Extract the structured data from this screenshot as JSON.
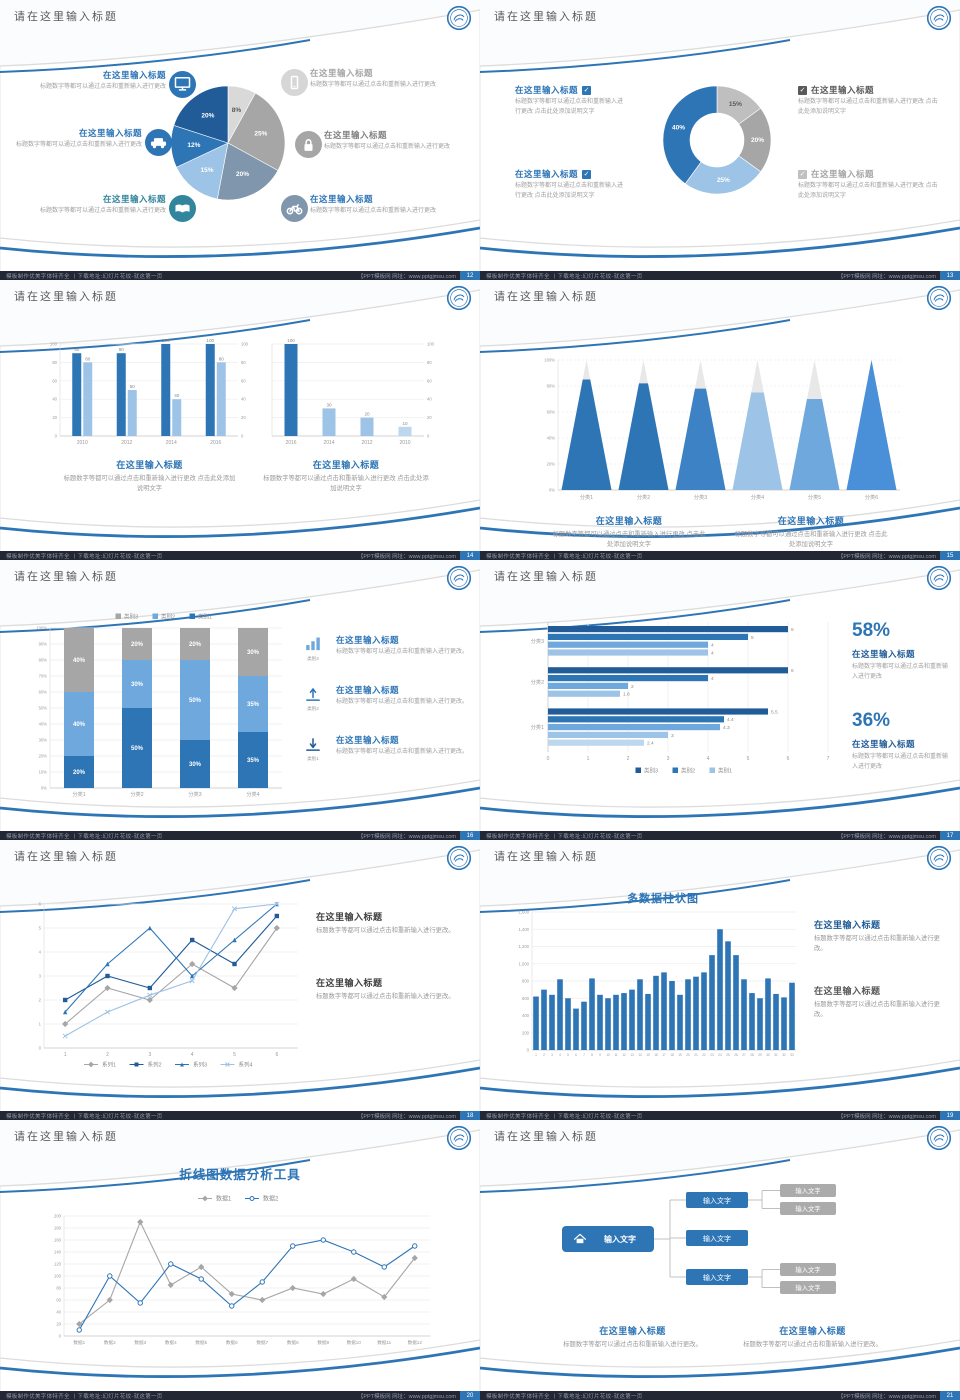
{
  "common": {
    "slide_title": "请在这里输入标题",
    "item_title": "在这里输入标题",
    "body_short": "标题数字等都可以通过点击和重新输入进行更改",
    "body_long": "标题数字等都可以通过点击和重新输入进行更改 点击此处添加说明文字",
    "body_period": "标题数字等都可以通过点击和重新输入进行更改。",
    "input_text": "输入文字",
    "footer_left": "模板制作优美字体特齐全 丨下载地址:幻灯片花纹-就这第一页",
    "footer_right": "【PPT模板网 网址：www.pptgjmsu.com",
    "accent_blue": "#2E75B6",
    "accent_blue_dark": "#215C98",
    "accent_teal": "#31859C",
    "text_dark": "#595959",
    "text_gray": "#9a9a9a",
    "footer_bg": "#232733"
  },
  "slides": [
    {
      "page": "12",
      "layout": "pie-callouts",
      "chart": 0,
      "left_items": [
        {
          "icon": "monitor-icon",
          "icon_bg": "#2E75B6",
          "title_color": "#2E75B6"
        },
        {
          "icon": "car-icon",
          "icon_bg": "#2E75B6",
          "title_color": "#2E75B6"
        },
        {
          "icon": "book-icon",
          "icon_bg": "#31859C",
          "title_color": "#31859C"
        }
      ],
      "right_items": [
        {
          "icon": "smartphone-icon",
          "icon_bg": "#D6D6D6",
          "title_color": "#A6A6A6"
        },
        {
          "icon": "lock-icon",
          "icon_bg": "#A6A6A6",
          "title_color": "#808080"
        },
        {
          "icon": "bicycle-icon",
          "icon_bg": "#7F96AD",
          "title_color": "#2E75B6"
        }
      ]
    },
    {
      "page": "13",
      "layout": "donut-checks",
      "chart": 1,
      "left_items": [
        {
          "check_color": "#2E75B6",
          "title_color": "#2E75B6"
        },
        {
          "check_color": "#2E75B6",
          "title_color": "#2E75B6"
        }
      ],
      "right_items": [
        {
          "check_color": "#595959",
          "title_color": "#595959"
        },
        {
          "check_color": "#C0C0C0",
          "title_color": "#A6A6A6"
        }
      ]
    },
    {
      "page": "14",
      "layout": "two-bar-charts",
      "charts": [
        2,
        3
      ]
    },
    {
      "page": "15",
      "layout": "pyramid",
      "chart": 4
    },
    {
      "page": "16",
      "layout": "stacked-bars",
      "chart": 5,
      "right_items": [
        {
          "icon": "bar-chart-icon",
          "caption": "类别3"
        },
        {
          "icon": "upload-icon",
          "caption": "类别2"
        },
        {
          "icon": "download-icon",
          "caption": "类别1"
        }
      ]
    },
    {
      "page": "17",
      "layout": "h-bars",
      "chart": 6,
      "stats": [
        "58%",
        "36%"
      ]
    },
    {
      "page": "18",
      "layout": "line-text",
      "chart": 7
    },
    {
      "page": "19",
      "layout": "columns-text",
      "chart": 8
    },
    {
      "page": "20",
      "layout": "line-full",
      "chart": 9
    },
    {
      "page": "21",
      "layout": "diagram",
      "diagram": {
        "root": {
          "icon": "home-icon",
          "label": "输入文字"
        },
        "mid_labels": [
          "输入文字",
          "输入文字",
          "输入文字"
        ],
        "right_labels": [
          "输入文字",
          "输入文字",
          "输入文字",
          "输入文字"
        ]
      }
    }
  ],
  "chart_data": [
    {
      "id": "pie-6seg",
      "type": "pie",
      "values": [
        8,
        25,
        20,
        15,
        12,
        20
      ],
      "labels": [
        "8%",
        "25%",
        "20%",
        "15%",
        "12%",
        "20%"
      ],
      "colors": [
        "#D9D9D9",
        "#A6A6A6",
        "#7F96AD",
        "#9DC3E6",
        "#2E75B6",
        "#215C98"
      ]
    },
    {
      "id": "donut-4seg",
      "type": "pie",
      "donut": true,
      "values": [
        15,
        20,
        25,
        40
      ],
      "labels": [
        "15%",
        "20%",
        "25%",
        "40%"
      ],
      "colors": [
        "#BFBFBF",
        "#A6A6A6",
        "#9DC3E6",
        "#2E75B6"
      ]
    },
    {
      "id": "grouped-bars",
      "type": "bar",
      "categories": [
        "2010",
        "2012",
        "2014",
        "2016"
      ],
      "series": [
        {
          "name": "系列1",
          "color": "#2E75B6",
          "values": [
            90,
            90,
            100,
            100
          ]
        },
        {
          "name": "系列2",
          "color": "#9DC3E6",
          "values": [
            80,
            50,
            40,
            80
          ]
        }
      ],
      "ylim": [
        0,
        100
      ],
      "ytick_step": 20
    },
    {
      "id": "desc-bars",
      "type": "bar",
      "categories": [
        "2016",
        "2014",
        "2012",
        "2010"
      ],
      "values": [
        100,
        30,
        20,
        10
      ],
      "bar_colors": [
        "#2E75B6",
        "#9DC3E6",
        "#9DC3E6",
        "#BDD7EE"
      ],
      "ylim": [
        0,
        100
      ],
      "ytick_step": 20
    },
    {
      "id": "pyramid",
      "type": "bar",
      "style": "pyramid",
      "categories": [
        "分类1",
        "分类2",
        "分类3",
        "分类4",
        "分类5",
        "分类6"
      ],
      "values": [
        85,
        82,
        78,
        75,
        70,
        100
      ],
      "fill_colors": [
        "#2E75B6",
        "#2E75B6",
        "#3D82C4",
        "#9DC3E6",
        "#6FA8DC",
        "#4A90D9"
      ],
      "ylim": [
        0,
        100
      ],
      "ytick_step": 20
    },
    {
      "id": "stacked-100",
      "type": "bar",
      "style": "stacked-percent",
      "categories": [
        "分类1",
        "分类2",
        "分类3",
        "分类4"
      ],
      "series": [
        {
          "name": "类别1",
          "color": "#2E75B6",
          "values": [
            20,
            50,
            30,
            35
          ]
        },
        {
          "name": "类别2",
          "color": "#6FA8DC",
          "values": [
            40,
            30,
            50,
            35
          ]
        },
        {
          "name": "类别3",
          "color": "#A6A6A6",
          "values": [
            40,
            20,
            20,
            30
          ]
        }
      ],
      "legend_order": [
        "类别3",
        "类别2",
        "类别1"
      ],
      "ylim": [
        0,
        100
      ],
      "ytick_step": 10
    },
    {
      "id": "h-bars",
      "type": "bar",
      "orientation": "horizontal",
      "groups": [
        {
          "category": "分类3",
          "values": [
            6,
            5,
            4,
            4
          ]
        },
        {
          "category": "分类2",
          "values": [
            6,
            4,
            2,
            1.8
          ]
        },
        {
          "category": "分类1",
          "values": [
            5.5,
            4.4,
            4.3,
            3,
            2.4
          ]
        }
      ],
      "bar_palette": [
        "#215C98",
        "#2E75B6",
        "#6FA8DC",
        "#9DC3E6",
        "#BDD7EE"
      ],
      "legend": [
        {
          "name": "类别3",
          "color": "#215C98"
        },
        {
          "name": "类别2",
          "color": "#2E75B6"
        },
        {
          "name": "类别1",
          "color": "#9DC3E6"
        }
      ],
      "xlim": [
        0,
        7
      ]
    },
    {
      "id": "line-4series",
      "type": "line",
      "x": [
        "1",
        "2",
        "3",
        "4",
        "5",
        "6"
      ],
      "series": [
        {
          "name": "系列1",
          "color": "#A6A6A6",
          "marker": "diamond",
          "values": [
            1,
            2.5,
            2,
            3.5,
            2.5,
            5
          ]
        },
        {
          "name": "系列2",
          "color": "#215C98",
          "marker": "square",
          "values": [
            2,
            3,
            2.5,
            4.5,
            3.5,
            5.5
          ]
        },
        {
          "name": "系列3",
          "color": "#2E75B6",
          "marker": "triangle",
          "values": [
            1.5,
            3.5,
            5,
            3,
            4.5,
            6
          ]
        },
        {
          "name": "系列4",
          "color": "#9DC3E6",
          "marker": "x",
          "values": [
            0.5,
            1.5,
            2.2,
            2.8,
            5.8,
            6
          ]
        }
      ],
      "ylim": [
        0,
        6
      ],
      "ytick_step": 1
    },
    {
      "id": "multi-columns",
      "type": "bar",
      "title": "多数据柱状图",
      "categories": [
        "1",
        "2",
        "3",
        "4",
        "5",
        "6",
        "7",
        "8",
        "9",
        "10",
        "11",
        "12",
        "13",
        "14",
        "15",
        "16",
        "17",
        "18",
        "19",
        "20",
        "21",
        "22",
        "23",
        "24",
        "25",
        "26",
        "27",
        "28",
        "29",
        "30",
        "31",
        "32",
        "33"
      ],
      "values": [
        620,
        700,
        640,
        820,
        600,
        480,
        560,
        830,
        640,
        600,
        640,
        660,
        700,
        820,
        650,
        860,
        900,
        800,
        640,
        820,
        850,
        900,
        1100,
        1400,
        1260,
        1100,
        820,
        660,
        600,
        830,
        650,
        610,
        780
      ],
      "color": "#2E75B6",
      "ylim": [
        0,
        1600
      ],
      "ytick_step": 200
    },
    {
      "id": "line-analysis",
      "type": "line",
      "title": "折线图数据分析工具",
      "categories": [
        "数据1",
        "数据2",
        "数据3",
        "数据4",
        "数据5",
        "数据6",
        "数据7",
        "数据8",
        "数据9",
        "数据10",
        "数据11",
        "数据12"
      ],
      "series": [
        {
          "name": "数据1",
          "color": "#A6A6A6",
          "marker": "diamond",
          "values": [
            20,
            60,
            190,
            85,
            115,
            70,
            60,
            80,
            70,
            95,
            65,
            130
          ]
        },
        {
          "name": "数据2",
          "color": "#2E75B6",
          "marker": "circle",
          "values": [
            10,
            100,
            55,
            120,
            95,
            50,
            90,
            150,
            160,
            140,
            115,
            150
          ]
        }
      ],
      "ylim": [
        0,
        200
      ],
      "ytick_step": 20
    }
  ]
}
